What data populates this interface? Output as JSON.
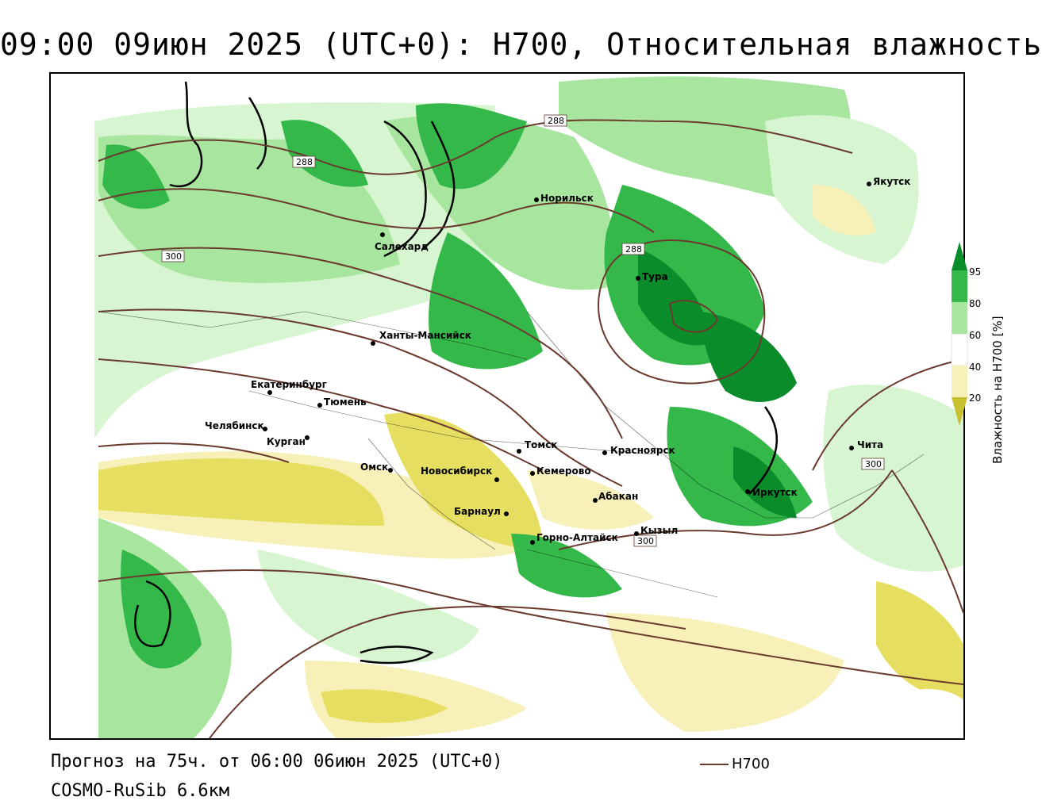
{
  "title": "09:00 09июн 2025 (UTC+0): H700, Относительная влажность",
  "footer": {
    "forecast": "Прогноз на 75ч. от 06:00 06июн 2025 (UTC+0)",
    "model": "COSMO-RuSib 6.6км"
  },
  "legend": {
    "contour_series": "H700",
    "contour_color": "#6b3a2e",
    "colorbar_label": "Влажность на H700 [%]",
    "ticks": [
      "95",
      "80",
      "60",
      "40",
      "20"
    ],
    "colors": {
      "dark_green": "#0b8c2a",
      "green": "#35b84a",
      "light_green": "#a8e6a0",
      "pale_green": "#d6f5d0",
      "white": "#ffffff",
      "pale_yellow": "#f7f0b8",
      "yellow": "#e6de60",
      "olive": "#c8c030"
    }
  },
  "cities": [
    {
      "name": "Якутск"
    },
    {
      "name": "Норильск"
    },
    {
      "name": "Салехард"
    },
    {
      "name": "Тура"
    },
    {
      "name": "Ханты-Мансийск"
    },
    {
      "name": "Екатеринбург"
    },
    {
      "name": "Тюмень"
    },
    {
      "name": "Челябинск"
    },
    {
      "name": "Курган"
    },
    {
      "name": "Томск"
    },
    {
      "name": "Красноярск"
    },
    {
      "name": "Чита"
    },
    {
      "name": "Омск"
    },
    {
      "name": "Новосибирск"
    },
    {
      "name": "Кемерово"
    },
    {
      "name": "Абакан"
    },
    {
      "name": "Иркутск"
    },
    {
      "name": "Барнаул"
    },
    {
      "name": "Кызыл"
    },
    {
      "name": "Горно-Алтайск"
    }
  ],
  "contour_labels": [
    "288",
    "288",
    "300",
    "288",
    "300",
    "300"
  ]
}
